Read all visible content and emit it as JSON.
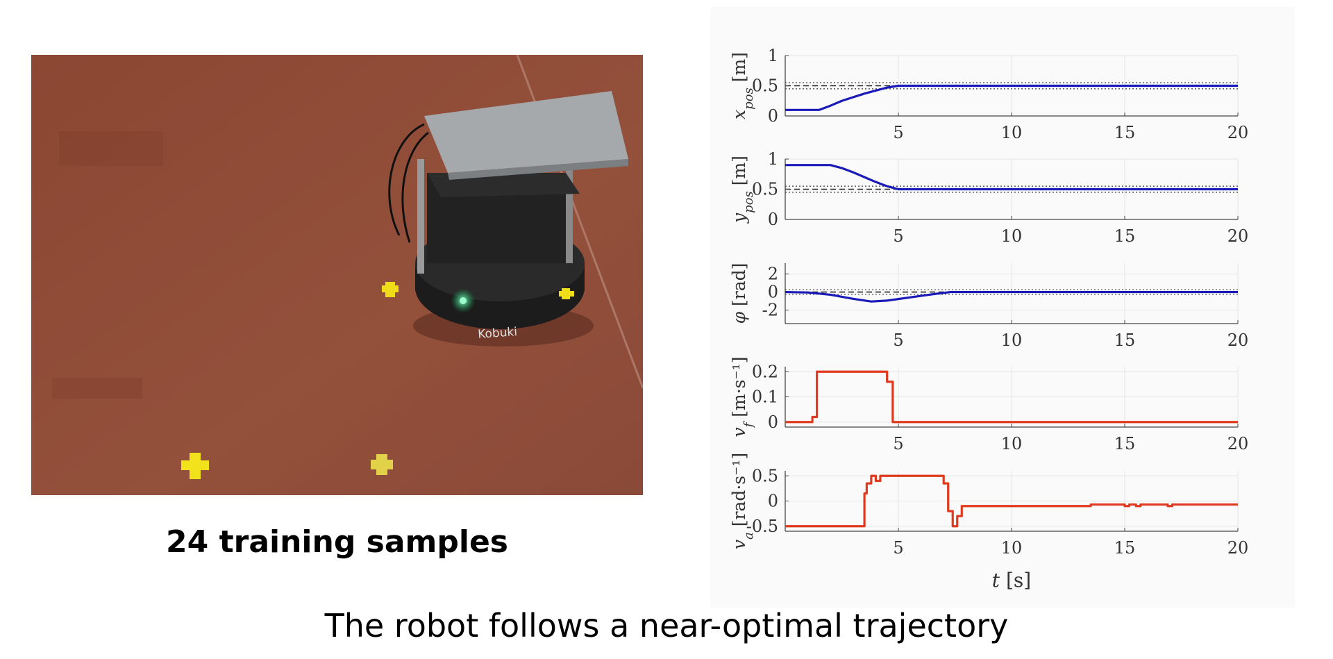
{
  "left_panel": {
    "photo_description_icon": "robot-photo",
    "robot_brand": "Kobuki",
    "samples_label": "24 training samples"
  },
  "caption": "The robot follows a near-optimal trajectory",
  "colors": {
    "state": "#1a1ab8",
    "control": "#e03a1e",
    "reference": "#222222",
    "panel_bg": "#fafafa",
    "floor": "#8e4a35"
  },
  "chart_data": [
    {
      "type": "line",
      "ylabel": "x_pos [m]",
      "ylabel_main": "x",
      "ylabel_sub": "pos",
      "ylabel_unit": " [m]",
      "xlim": [
        0,
        20
      ],
      "ylim": [
        0,
        1
      ],
      "yticks": [
        0,
        0.5,
        1
      ],
      "ytick_labels": [
        "0",
        "0.5",
        "1"
      ],
      "xticks": [
        5,
        10,
        15,
        20
      ],
      "xtick_labels": [
        "5",
        "10",
        "15",
        "20"
      ],
      "reference": 0.5,
      "band": 0.05,
      "series": [
        {
          "name": "x_pos",
          "color": "#1a1ab8",
          "x": [
            0,
            1.5,
            2,
            2.5,
            3,
            3.5,
            4,
            4.5,
            5,
            20
          ],
          "y": [
            0.1,
            0.1,
            0.17,
            0.25,
            0.31,
            0.37,
            0.42,
            0.47,
            0.5,
            0.5
          ]
        }
      ]
    },
    {
      "type": "line",
      "ylabel": "y_pos [m]",
      "ylabel_main": "y",
      "ylabel_sub": "pos",
      "ylabel_unit": " [m]",
      "xlim": [
        0,
        20
      ],
      "ylim": [
        0,
        1
      ],
      "yticks": [
        0,
        0.5,
        1
      ],
      "ytick_labels": [
        "0",
        "0.5",
        "1"
      ],
      "xticks": [
        5,
        10,
        15,
        20
      ],
      "xtick_labels": [
        "5",
        "10",
        "15",
        "20"
      ],
      "reference": 0.5,
      "band": 0.05,
      "series": [
        {
          "name": "y_pos",
          "color": "#1a1ab8",
          "x": [
            0,
            2,
            2.5,
            3,
            3.5,
            4,
            4.5,
            5,
            20
          ],
          "y": [
            0.9,
            0.9,
            0.85,
            0.78,
            0.7,
            0.62,
            0.55,
            0.5,
            0.5
          ]
        }
      ]
    },
    {
      "type": "line",
      "ylabel": "φ [rad]",
      "ylabel_main": "φ",
      "ylabel_sub": "",
      "ylabel_unit": " [rad]",
      "xlim": [
        0,
        20
      ],
      "ylim": [
        -3.5,
        3.2
      ],
      "yticks": [
        -2,
        0,
        2
      ],
      "ytick_labels": [
        "-2",
        "0",
        "2"
      ],
      "xticks": [
        5,
        10,
        15,
        20
      ],
      "xtick_labels": [
        "5",
        "10",
        "15",
        "20"
      ],
      "reference": 0,
      "band": 0.25,
      "series": [
        {
          "name": "phi",
          "color": "#1a1ab8",
          "x": [
            0,
            1,
            2,
            3,
            3.8,
            4.5,
            5.5,
            6.5,
            7.3,
            20
          ],
          "y": [
            0,
            -0.05,
            -0.3,
            -0.75,
            -1.05,
            -0.95,
            -0.6,
            -0.25,
            0,
            0
          ]
        }
      ]
    },
    {
      "type": "line",
      "step": true,
      "ylabel": "v_f [m·s⁻¹]",
      "ylabel_main": "v",
      "ylabel_sub": "f",
      "ylabel_unit": " [m·s⁻¹]",
      "xlim": [
        0,
        20
      ],
      "ylim": [
        -0.02,
        0.22
      ],
      "yticks": [
        0,
        0.1,
        0.2
      ],
      "ytick_labels": [
        "0",
        "0.1",
        "0.2"
      ],
      "xticks": [
        5,
        10,
        15,
        20
      ],
      "xtick_labels": [
        "5",
        "10",
        "15",
        "20"
      ],
      "series": [
        {
          "name": "v_f",
          "color": "#e03a1e",
          "x": [
            0,
            1.2,
            1.4,
            4.5,
            4.75,
            20
          ],
          "y": [
            0,
            0.02,
            0.2,
            0.16,
            0,
            0
          ]
        }
      ]
    },
    {
      "type": "line",
      "step": true,
      "ylabel": "v_a [rad·s⁻¹]",
      "ylabel_main": "v",
      "ylabel_sub": "a",
      "ylabel_unit": " [rad·s⁻¹]",
      "xlim": [
        0,
        20
      ],
      "ylim": [
        -0.6,
        0.6
      ],
      "yticks": [
        -0.5,
        0,
        0.5
      ],
      "ytick_labels": [
        "-0.5",
        "0",
        "0.5"
      ],
      "xticks": [
        5,
        10,
        15,
        20
      ],
      "xtick_labels": [
        "5",
        "10",
        "15",
        "20"
      ],
      "xlabel": "t [s]",
      "xlabel_main": "t",
      "xlabel_unit": " [s]",
      "series": [
        {
          "name": "v_a",
          "color": "#e03a1e",
          "x": [
            0,
            3.5,
            3.6,
            3.8,
            4.0,
            4.2,
            7.0,
            7.2,
            7.4,
            7.6,
            7.8,
            8.0,
            13.5,
            15.0,
            15.2,
            15.5,
            15.7,
            16.9,
            17.1,
            20
          ],
          "y": [
            -0.5,
            0.15,
            0.35,
            0.5,
            0.4,
            0.5,
            0.35,
            -0.2,
            -0.5,
            -0.3,
            -0.1,
            -0.1,
            -0.07,
            -0.1,
            -0.07,
            -0.1,
            -0.07,
            -0.1,
            -0.07,
            -0.07
          ]
        }
      ]
    }
  ]
}
